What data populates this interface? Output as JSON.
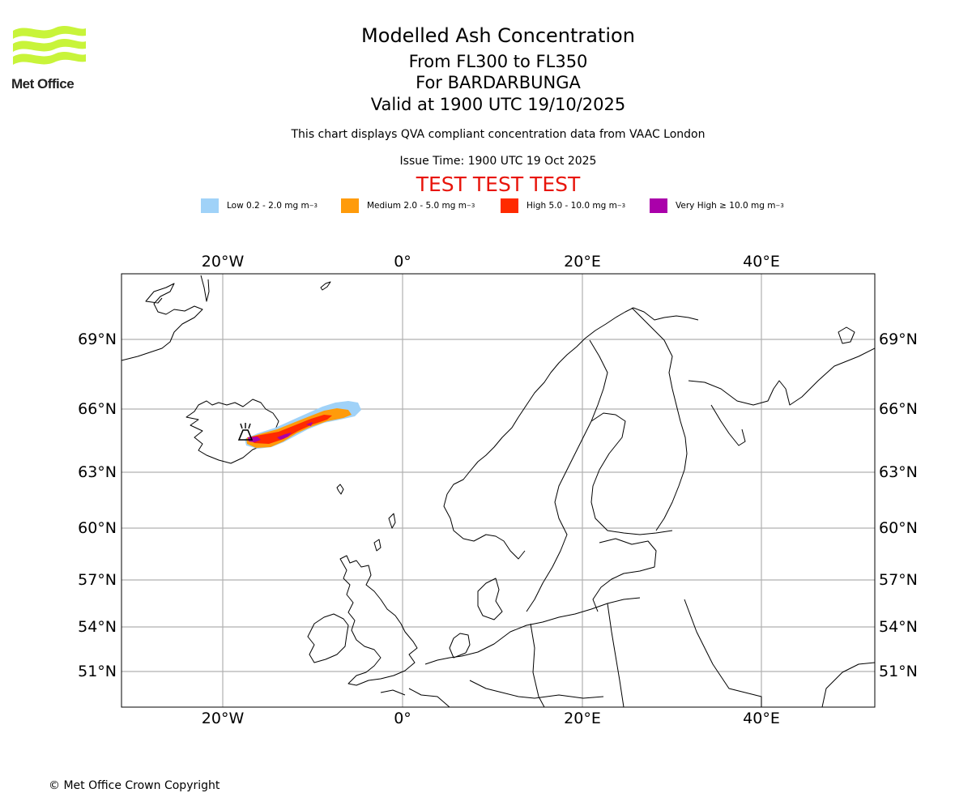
{
  "header": {
    "title": "Modelled Ash Concentration",
    "range": "From FL300 to FL350",
    "volcano": "For BARDARBUNGA",
    "valid": "Valid at 1900 UTC 19/10/2025",
    "description": "This chart displays QVA compliant concentration data from VAAC London",
    "issue_time": "Issue Time: 1900 UTC 19 Oct 2025",
    "test_banner": "TEST TEST TEST",
    "test_color": "#e8150b"
  },
  "logo": {
    "text": "Met Office",
    "color": "#c8f43a"
  },
  "legend": [
    {
      "label": "Low 0.2 - 2.0 mg m",
      "sup": "−3",
      "color": "#a0d2f8"
    },
    {
      "label": "Medium 2.0 - 5.0 mg m",
      "sup": "−3",
      "color": "#ff9b0a"
    },
    {
      "label": "High 5.0 - 10.0 mg m",
      "sup": "−3",
      "color": "#ff2a00"
    },
    {
      "label": "Very High  ≥  10.0 mg m",
      "sup": "−3",
      "color": "#aa00aa"
    }
  ],
  "map": {
    "lon_ticks": [
      "20°W",
      "0°",
      "20°E",
      "40°E"
    ],
    "lat_ticks": [
      "69°N",
      "66°N",
      "63°N",
      "60°N",
      "57°N",
      "54°N",
      "51°N"
    ],
    "volcano_marker": "volcano-icon"
  },
  "footer": {
    "copyright": "© Met Office Crown Copyright"
  }
}
